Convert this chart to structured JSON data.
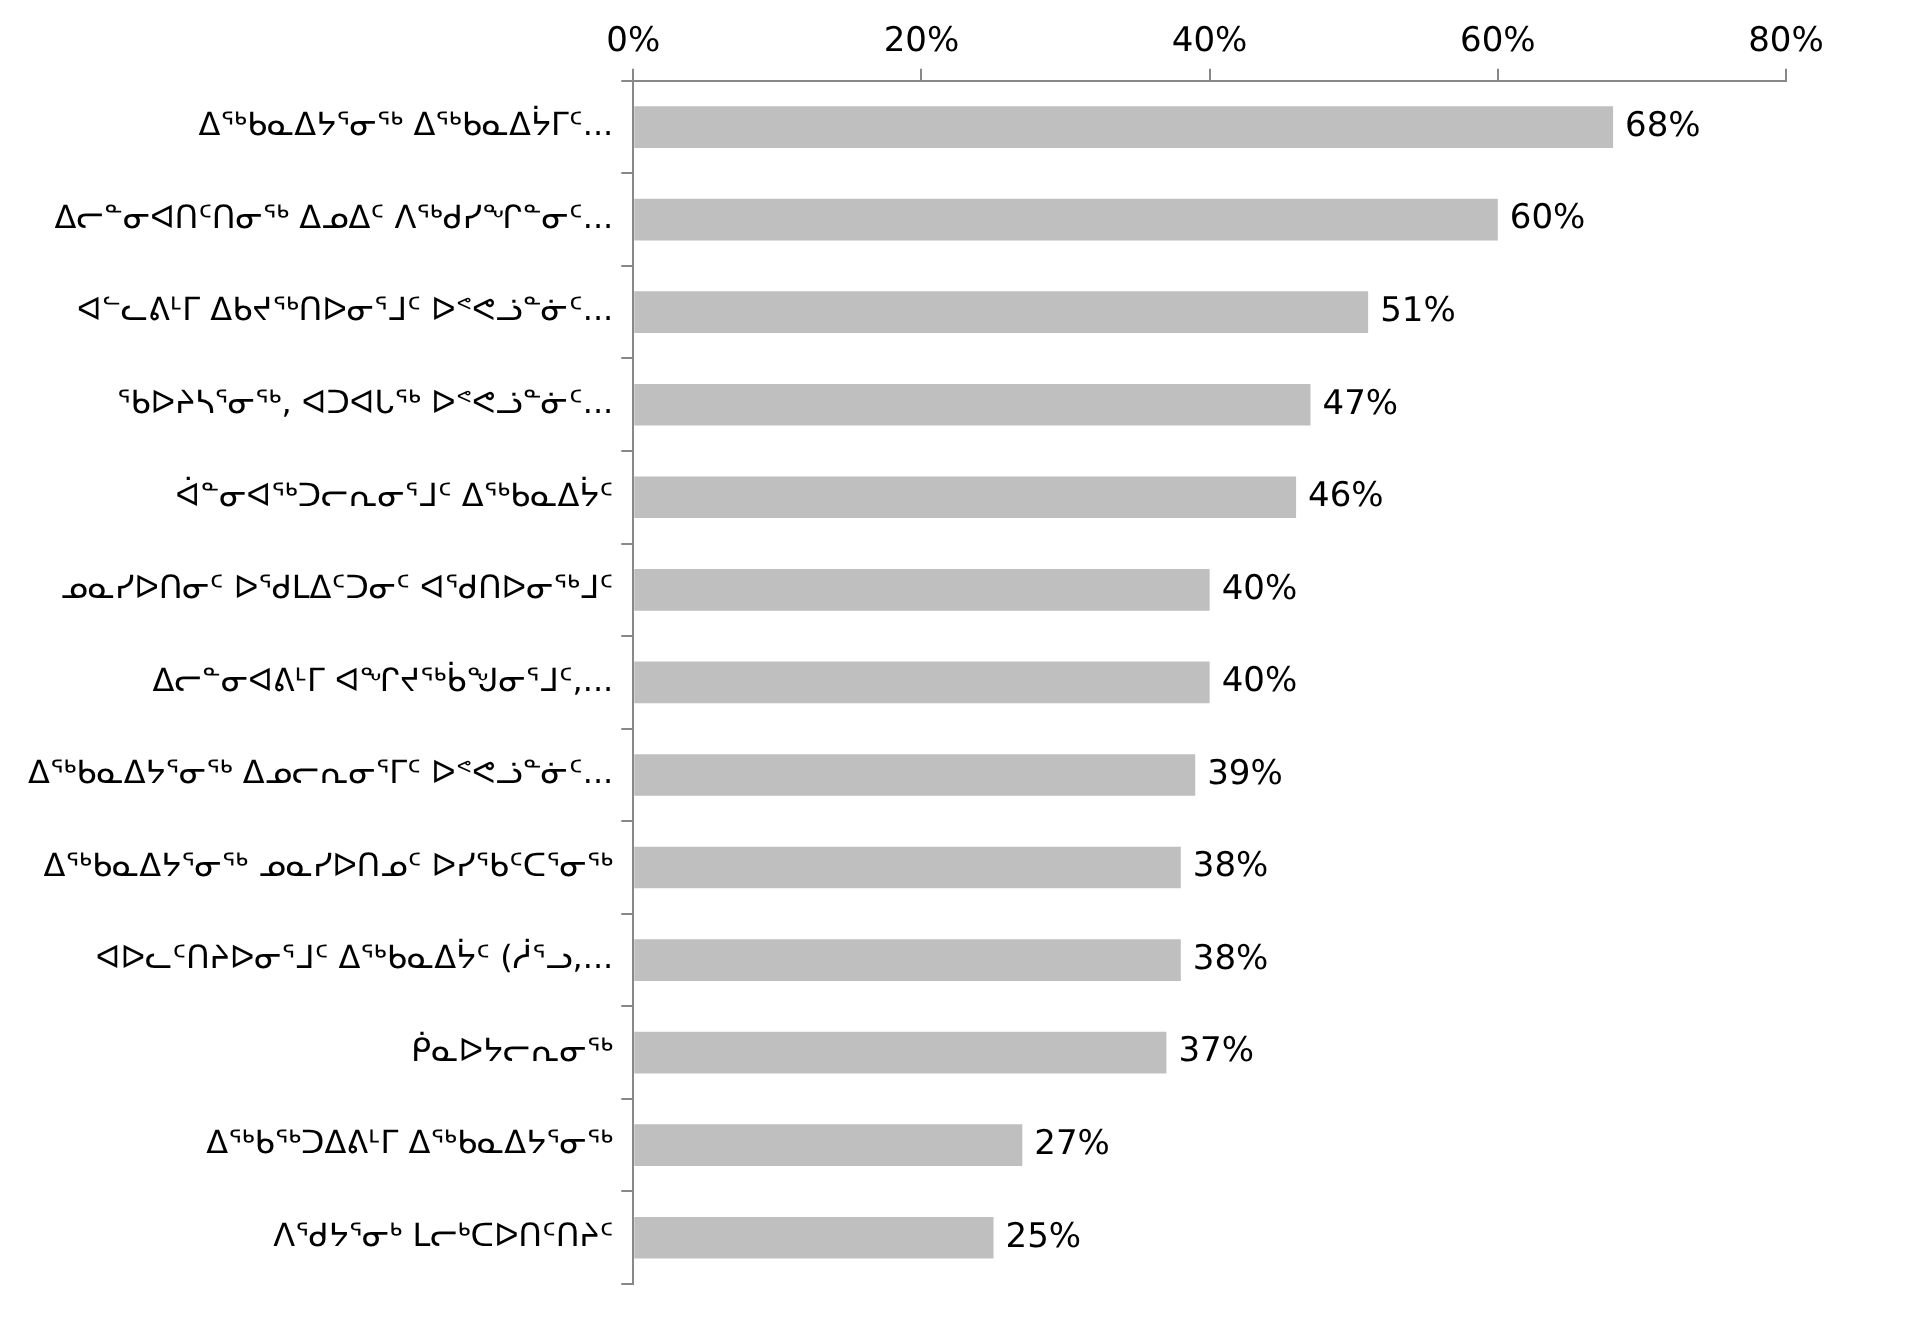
{
  "chart_data": {
    "type": "bar",
    "orientation": "horizontal",
    "categories": [
      "ᐃᖅᑲᓇᐃᔭᕐᓂᖅ ᐃᖅᑲᓇᐃᔮᒥᑦ...",
      "ᐃᓕᓐᓂᐊᑎᑦᑎᓂᖅ ᐃᓄᐃᑦ ᐱᖅᑯᓯᖏᓐᓂᑦ...",
      "ᐊᓪᓚᕕᒻᒥ ᐃᑲᔪᖅᑎᐅᓂᕐᒧᑦ ᐅᕝᕙᓘᓐᓃᑦ...",
      "ᖃᐅᔨᓴᕐᓂᖅ, ᐊᑐᐊᒐᖅ ᐅᕝᕙᓘᓐᓃᑦ...",
      "ᐋᓐᓂᐊᖅᑐᓕᕆᓂᕐᒧᑦ ᐃᖅᑲᓇᐃᔮᑦ",
      "ᓄᓇᓯᐅᑎᓂᑦ ᐅᕐᑯᒪᐃᑦᑐᓂᑦ ᐊᕐᑯᑎᐅᓂᖅᒧᑦ",
      "ᐃᓕᓐᓂᐊᕕᒻᒥ ᐊᖏᔪᖅᑳᖑᓂᕐᒧᑦ,...",
      "ᐃᖅᑲᓇᐃᔭᕐᓂᖅ ᐃᓄᓕᕆᓂᕐᒥᑦ ᐅᕝᕙᓘᓐᓃᑦ...",
      "ᐃᖅᑲᓇᐃᔭᕐᓂᖅ ᓄᓇᓯᐅᑎᓄᑦ ᐅᓯᕐᑲᑦᑕᕐᓂᖅ",
      "ᐊᐅᓚᑦᑎᔨᐅᓂᕐᒧᑦ ᐃᖅᑲᓇᐃᔮᑦ (ᓲᕐᓗ,...",
      "ᑮᓇᐅᔭᓕᕆᓂᖅ",
      "ᐃᖅᑲᖅᑐᐃᕕᒻᒥ ᐃᖅᑲᓇᐃᔭᕐᓂᖅ",
      "ᐱᕐᑯᔭᕐᓂᒃ ᒪᓕᒃᑕᐅᑎᑦᑎᔨᑦ"
    ],
    "values": [
      68,
      60,
      51,
      47,
      46,
      40,
      40,
      39,
      38,
      38,
      37,
      27,
      25
    ],
    "value_labels": [
      "68%",
      "60%",
      "51%",
      "47%",
      "46%",
      "40%",
      "40%",
      "39%",
      "38%",
      "38%",
      "37%",
      "27%",
      "25%"
    ],
    "color": "#bfbfbf",
    "xlim": [
      0,
      80
    ],
    "xticks": [
      {
        "value": 0,
        "label": "0%"
      },
      {
        "value": 20,
        "label": "20%"
      },
      {
        "value": 40,
        "label": "40%"
      },
      {
        "value": 60,
        "label": "60%"
      },
      {
        "value": 80,
        "label": "80%"
      }
    ],
    "grid": false,
    "legend": false
  }
}
